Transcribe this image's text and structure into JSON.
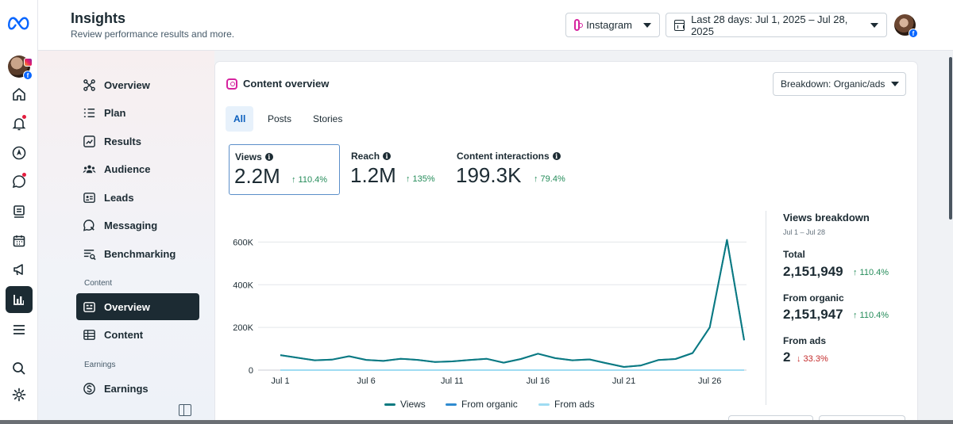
{
  "header": {
    "title": "Insights",
    "subtitle": "Review performance results and more.",
    "platform_label": "Instagram",
    "date_range_label": "Last 28 days: Jul 1, 2025 – Jul 28, 2025"
  },
  "sidenav": {
    "items": [
      {
        "label": "Overview"
      },
      {
        "label": "Plan"
      },
      {
        "label": "Results"
      },
      {
        "label": "Audience"
      },
      {
        "label": "Leads"
      },
      {
        "label": "Messaging"
      },
      {
        "label": "Benchmarking"
      }
    ],
    "content_section": "Content",
    "content_items": [
      {
        "label": "Overview"
      },
      {
        "label": "Content"
      }
    ],
    "earnings_section": "Earnings",
    "earnings_items": [
      {
        "label": "Earnings"
      }
    ]
  },
  "card": {
    "title": "Content overview",
    "breakdown_dropdown": "Breakdown: Organic/ads",
    "tabs": [
      {
        "label": "All"
      },
      {
        "label": "Posts"
      },
      {
        "label": "Stories"
      }
    ],
    "metrics": [
      {
        "label": "Views",
        "info_icon": "i",
        "value": "2.2M",
        "change": "↑ 110.4%"
      },
      {
        "label": "Reach",
        "info_icon": "i",
        "value": "1.2M",
        "change": "↑ 135%"
      },
      {
        "label": "Content interactions",
        "info_icon": "i",
        "value": "199.3K",
        "change": "↑ 79.4%"
      }
    ],
    "views_breakdown": {
      "title": "Views breakdown",
      "range": "Jul 1 – Jul 28",
      "total_label": "Total",
      "total_value": "2,151,949",
      "total_change": "↑ 110.4%",
      "organic_label": "From organic",
      "organic_value": "2,151,947",
      "organic_change": "↑ 110.4%",
      "ads_label": "From ads",
      "ads_value": "2",
      "ads_change": "↓ 33.3%"
    }
  },
  "colors": {
    "views": "#0b7a80",
    "organic": "#2f8bd0",
    "ads": "#9fdcf2",
    "positive": "#258c5a",
    "negative": "#c42b2b"
  },
  "chart_data": {
    "type": "line",
    "title": "",
    "x": [
      "Jul 1",
      "Jul 2",
      "Jul 3",
      "Jul 4",
      "Jul 5",
      "Jul 6",
      "Jul 7",
      "Jul 8",
      "Jul 9",
      "Jul 10",
      "Jul 11",
      "Jul 12",
      "Jul 13",
      "Jul 14",
      "Jul 15",
      "Jul 16",
      "Jul 17",
      "Jul 18",
      "Jul 19",
      "Jul 20",
      "Jul 21",
      "Jul 22",
      "Jul 23",
      "Jul 24",
      "Jul 25",
      "Jul 26",
      "Jul 27",
      "Jul 28"
    ],
    "x_tick_labels": [
      "Jul 1",
      "Jul 6",
      "Jul 11",
      "Jul 16",
      "Jul 21",
      "Jul 26"
    ],
    "x_tick_indices": [
      0,
      5,
      10,
      15,
      20,
      25
    ],
    "y_tick_labels": [
      "0",
      "200K",
      "400K",
      "600K"
    ],
    "y_tick_values": [
      0,
      200000,
      400000,
      600000
    ],
    "ylim": [
      0,
      620000
    ],
    "series": [
      {
        "name": "Views",
        "values": [
          70000,
          58000,
          46000,
          49000,
          65000,
          48000,
          43000,
          53000,
          48000,
          38000,
          41000,
          47000,
          53000,
          35000,
          52000,
          77000,
          56000,
          46000,
          50000,
          32000,
          15000,
          22000,
          47000,
          52000,
          80000,
          200000,
          610000,
          140000
        ]
      },
      {
        "name": "From organic",
        "values": [
          70000,
          58000,
          46000,
          49000,
          65000,
          48000,
          43000,
          53000,
          48000,
          38000,
          41000,
          47000,
          53000,
          35000,
          52000,
          77000,
          56000,
          46000,
          50000,
          32000,
          15000,
          22000,
          47000,
          52000,
          80000,
          200000,
          610000,
          140000
        ]
      },
      {
        "name": "From ads",
        "values": [
          0,
          0,
          0,
          0,
          0,
          0,
          0,
          0,
          0,
          0,
          0,
          0,
          0,
          0,
          0,
          0,
          0,
          0,
          0,
          0,
          0,
          0,
          0,
          0,
          0,
          0,
          0,
          0
        ]
      }
    ]
  }
}
